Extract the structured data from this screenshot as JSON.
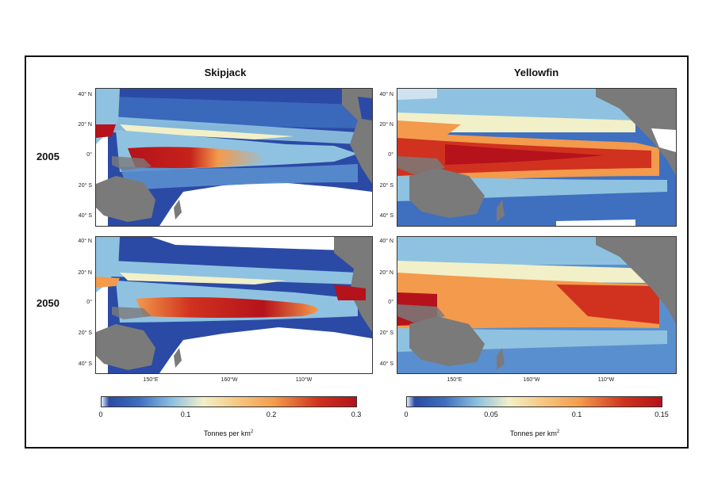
{
  "columns": [
    "Skipjack",
    "Yellowfin"
  ],
  "rows": [
    "2005",
    "2050"
  ],
  "lat_labels": [
    "40° N",
    "20° N",
    "0°",
    "20° S",
    "40° S"
  ],
  "lon_labels": [
    "150°E",
    "160°W",
    "110°W"
  ],
  "colorbars": [
    {
      "species": "Skipjack",
      "ticks": [
        "0",
        "0.1",
        "0.2",
        "0.3"
      ],
      "min": 0,
      "max": 0.3
    },
    {
      "species": "Yellowfin",
      "ticks": [
        "0",
        "0.05",
        "0.1",
        "0.15"
      ],
      "min": 0,
      "max": 0.15
    }
  ],
  "colorbar_unit": "Tonnes per km",
  "colorbar_unit_sup": "2",
  "colors": {
    "land": "#7a7a7a",
    "ocean_empty": "#ffffff",
    "low": "#2b4aa6",
    "mid_low": "#8fc2e0",
    "mid": "#f2f0c8",
    "mid_high": "#f39a4c",
    "high": "#b5121b"
  }
}
